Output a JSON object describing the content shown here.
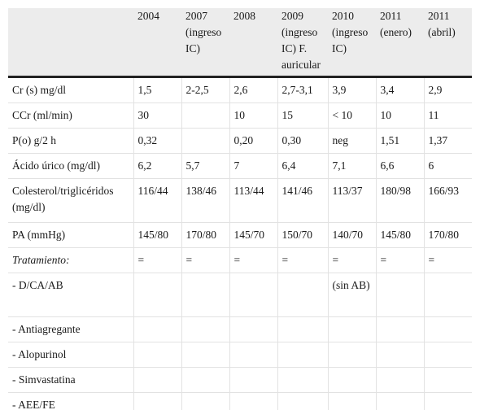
{
  "headers": [
    "",
    "2004",
    "2007 (ingreso IC)",
    "2008",
    "2009 (ingreso IC) F. auricular",
    "2010 (ingreso IC)",
    "2011 (enero)",
    "2011 (abril)"
  ],
  "rows": [
    {
      "label": "Cr (s) mg/dl",
      "cells": [
        "1,5",
        "2-2,5",
        "2,6",
        "2,7-3,1",
        "3,9",
        "3,4",
        "2,9"
      ]
    },
    {
      "label": "CCr (ml/min)",
      "cells": [
        "30",
        "",
        "10",
        "15",
        "< 10",
        "10",
        "11"
      ]
    },
    {
      "label": "P(o) g/2 h",
      "cells": [
        "0,32",
        "",
        "0,20",
        "0,30",
        "neg",
        "1,51",
        "1,37"
      ]
    },
    {
      "label": "Ácido úrico (mg/dl)",
      "cells": [
        "6,2",
        "5,7",
        "7",
        "6,4",
        "7,1",
        "6,6",
        "6"
      ]
    },
    {
      "label": "Colesterol/triglicéridos (mg/dl)",
      "cells": [
        "116/44",
        "138/46",
        "113/44",
        "141/46",
        "113/37",
        "180/98",
        "166/93"
      ]
    },
    {
      "label": "PA (mmHg)",
      "cells": [
        "145/80",
        "170/80",
        "145/70",
        "150/70",
        "140/70",
        "145/80",
        "170/80"
      ]
    },
    {
      "label": "Tratamiento:",
      "cells": [
        "=",
        "=",
        "=",
        "=",
        "=",
        "=",
        "="
      ]
    },
    {
      "label": " - D/CA/AB",
      "cells": [
        "",
        "",
        "",
        "",
        "(sin AB)",
        "",
        ""
      ]
    },
    {
      "label": " - Antiagregante",
      "cells": [
        "",
        "",
        "",
        "",
        "",
        "",
        ""
      ]
    },
    {
      "label": " - Alopurinol",
      "cells": [
        "",
        "",
        "",
        "",
        "",
        "",
        ""
      ]
    },
    {
      "label": " - Simvastatina",
      "cells": [
        "",
        "",
        "",
        "",
        "",
        "",
        ""
      ]
    },
    {
      "label": " - AEE/FE",
      "cells": [
        "",
        "",
        "",
        "",
        "",
        "",
        ""
      ]
    }
  ]
}
